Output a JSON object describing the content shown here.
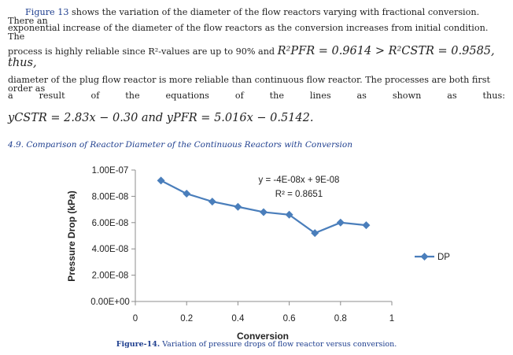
{
  "paragraph": {
    "line1_fig": "Figure 13",
    "line1_rest": " shows the variation of the diameter of the flow reactors varying with fractional conversion. There an",
    "line2": "exponential increase of the diameter of the flow reactors as the conversion increases from initial condition. The",
    "line3_text": "process is highly reliable since R²-values are up to 90% and ",
    "line3_math": "R²PFR = 0.9614 > R²CSTR = 0.9585, thus,",
    "line4": "diameter of the plug flow reactor is more reliable than continuous flow reactor. The processes are both first order as",
    "line5_words": [
      "a",
      "result",
      "of",
      "the",
      "equations",
      "of",
      "the",
      "lines",
      "as",
      "shown",
      "as",
      "thus:"
    ],
    "eq1": "yCSTR = 2.83x − 0.30 and yPFR = 5.016x − 0.5142."
  },
  "section_heading": "4.9. Comparison of Reactor Diameter of the Continuous Reactors with Conversion",
  "caption": {
    "label": "Figure-14.",
    "text": " Variation of pressure drops of flow reactor versus conversion."
  },
  "chart_data": {
    "type": "line",
    "title": "",
    "xlabel": "Conversion",
    "ylabel": "Pressure Drop (kPa)",
    "xlim": [
      0,
      1
    ],
    "ylim": [
      0,
      1e-07
    ],
    "xticks": [
      0,
      0.2,
      0.4,
      0.6,
      0.8,
      1
    ],
    "xtick_labels": [
      "0",
      "0.2",
      "0.4",
      "0.6",
      "0.8",
      "1"
    ],
    "yticks": [
      0,
      2e-08,
      4e-08,
      6e-08,
      8e-08,
      1e-07
    ],
    "ytick_labels": [
      "0.00E+00",
      "2.00E-08",
      "4.00E-08",
      "6.00E-08",
      "8.00E-08",
      "1.00E-07"
    ],
    "series": [
      {
        "name": "DP",
        "color": "#4a7ebb",
        "x": [
          0.1,
          0.2,
          0.3,
          0.4,
          0.5,
          0.6,
          0.7,
          0.8,
          0.9
        ],
        "y": [
          9.2e-08,
          8.2e-08,
          7.6e-08,
          7.2e-08,
          6.8e-08,
          6.6e-08,
          5.2e-08,
          6e-08,
          5.8e-08
        ]
      }
    ],
    "annotation": {
      "equation": "y = -4E-08x + 9E-08",
      "r2": "R² = 0.8651"
    },
    "legend": {
      "position": "right",
      "entries": [
        "DP"
      ]
    }
  }
}
